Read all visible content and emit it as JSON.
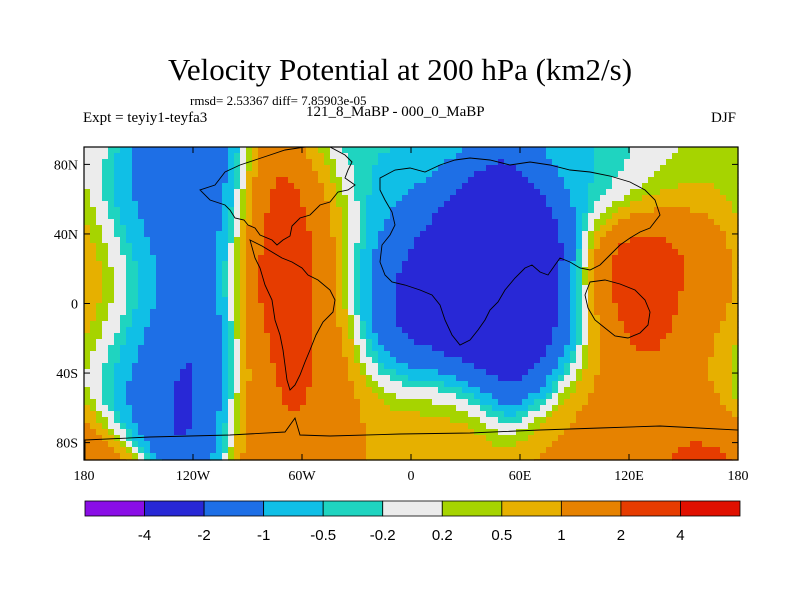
{
  "chart_data": {
    "type": "heatmap",
    "title": "Velocity Potential at 200 hPa (km2/s)",
    "stats_text": "rmsd= 2.53367 diff= 7.85903e-05",
    "left_label": "Expt = teyiy1-teyfa3",
    "center_label": "121_8_MaBP - 000_0_MaBP",
    "right_label": "DJF",
    "xlim": [
      -180,
      180
    ],
    "ylim": [
      -90,
      90
    ],
    "x_ticks": [
      {
        "value": -180,
        "label": "180"
      },
      {
        "value": -120,
        "label": "120W"
      },
      {
        "value": -60,
        "label": "60W"
      },
      {
        "value": 0,
        "label": "0"
      },
      {
        "value": 60,
        "label": "60E"
      },
      {
        "value": 120,
        "label": "120E"
      },
      {
        "value": 180,
        "label": "180"
      }
    ],
    "y_ticks": [
      {
        "value": 80,
        "label": "80N"
      },
      {
        "value": 40,
        "label": "40N"
      },
      {
        "value": 0,
        "label": "0"
      },
      {
        "value": -40,
        "label": "40S"
      },
      {
        "value": -80,
        "label": "80S"
      }
    ],
    "colorbar": {
      "levels": [
        "-4",
        "-2",
        "-1",
        "-0.5",
        "-0.2",
        "0.2",
        "0.5",
        "1",
        "2",
        "4"
      ],
      "colors": [
        "#8a0ee6",
        "#2828d6",
        "#1e6fe6",
        "#10bfe6",
        "#1fd4c0",
        "#ececec",
        "#a6d400",
        "#e6b000",
        "#e68200",
        "#e63c00",
        "#e01000"
      ]
    },
    "features": [
      {
        "name": "w-pacific-east-positive-low",
        "lon": -180,
        "lat": 20,
        "value": 1.7
      },
      {
        "name": "w-pacific-east-positive-low2",
        "lon": -180,
        "lat": -10,
        "value": 1.3
      },
      {
        "name": "ne-pacific-negative",
        "lon": -128,
        "lat": 40,
        "value": -2.1
      },
      {
        "name": "n-pacific-band-negative",
        "lon": -150,
        "lat": 30,
        "value": -1.2
      },
      {
        "name": "s-pacific-negative",
        "lon": -128,
        "lat": -22,
        "value": -2.6
      },
      {
        "name": "s-pacific-negative-west",
        "lon": -165,
        "lat": -20,
        "value": -1.6
      },
      {
        "name": "north-america-positive",
        "lon": -60,
        "lat": 32,
        "value": 3.2
      },
      {
        "name": "south-america-positive",
        "lon": -55,
        "lat": -8,
        "value": 3.2
      },
      {
        "name": "south-america-positive-south",
        "lon": -58,
        "lat": -35,
        "value": 2.0
      },
      {
        "name": "atlantic-negative",
        "lon": -8,
        "lat": 12,
        "value": -2.2
      },
      {
        "name": "atlantic-negative-north",
        "lon": -15,
        "lat": 45,
        "value": -1.0
      },
      {
        "name": "west-africa-min",
        "lon": -5,
        "lat": -8,
        "value": -3.5
      },
      {
        "name": "eurasia-negative",
        "lon": 45,
        "lat": 40,
        "value": -3.2
      },
      {
        "name": "asia-negative-min",
        "lon": 40,
        "lat": 15,
        "value": -4.5
      },
      {
        "name": "s-indian-negative",
        "lon": 68,
        "lat": -10,
        "value": -2.8
      },
      {
        "name": "w-pacific-positive",
        "lon": 130,
        "lat": 12,
        "value": 3.5
      },
      {
        "name": "w-pacific-positive-south",
        "lon": 130,
        "lat": -15,
        "value": 2.2
      },
      {
        "name": "se-pacific-positive",
        "lon": 170,
        "lat": 0,
        "value": 1.6
      },
      {
        "name": "southern-ocean-positive",
        "lon": 0,
        "lat": -58,
        "value": 0.9
      },
      {
        "name": "southern-ocean-positive-e",
        "lon": 110,
        "lat": -62,
        "value": 1.2
      },
      {
        "name": "antarctica-positive",
        "lon": 150,
        "lat": -85,
        "value": 2.2
      },
      {
        "name": "arctic-neutral",
        "lon": 0,
        "lat": 85,
        "value": -0.35
      },
      {
        "name": "arctic-neutral-2",
        "lon": 100,
        "lat": 80,
        "value": -0.6
      },
      {
        "name": "arctic-slight-positive",
        "lon": 150,
        "lat": 78,
        "value": 0.3
      }
    ]
  }
}
